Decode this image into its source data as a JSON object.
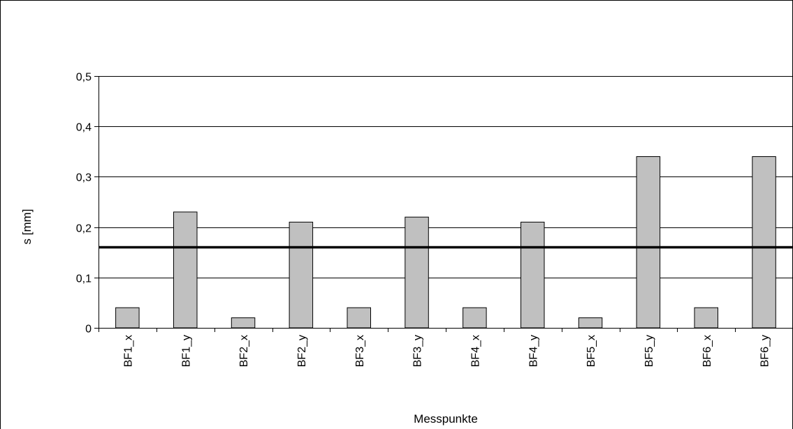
{
  "chart_data": {
    "type": "bar",
    "title": "",
    "xlabel": "Messpunkte",
    "ylabel": "s [mm]",
    "categories": [
      "BF1_x",
      "BF1_y",
      "BF2_x",
      "BF2_y",
      "BF3_x",
      "BF3_y",
      "BF4_x",
      "BF4_y",
      "BF5_x",
      "BF5_y",
      "BF6_x",
      "BF6_y"
    ],
    "values": [
      0.04,
      0.23,
      0.02,
      0.21,
      0.04,
      0.22,
      0.04,
      0.21,
      0.02,
      0.34,
      0.04,
      0.34
    ],
    "ylim": [
      0,
      0.5
    ],
    "yticks": [
      0,
      0.1,
      0.2,
      0.3,
      0.4,
      0.5
    ],
    "ytick_labels": [
      "0",
      "0,1",
      "0,2",
      "0,3",
      "0,4",
      "0,5"
    ],
    "reference_line": 0.16,
    "grid": true,
    "legend": "none",
    "colors": {
      "bar_fill": "#c0c0c0",
      "bar_stroke": "#000000",
      "grid": "#000000",
      "reference_line": "#000000",
      "background": "#ffffff",
      "frame": "#000000"
    }
  }
}
